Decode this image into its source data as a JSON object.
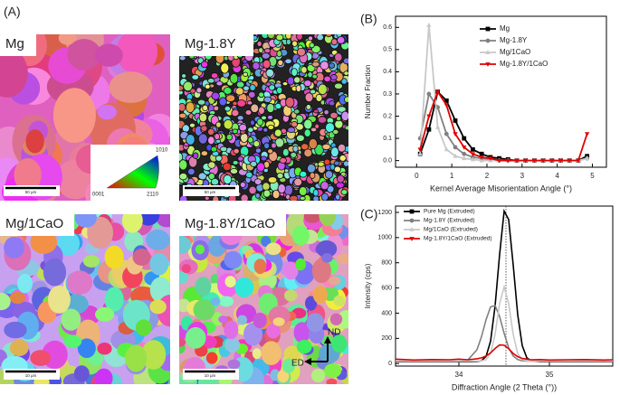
{
  "panel_a": {
    "label": "(A)",
    "images": [
      {
        "name": "Mg",
        "scale_bar": "50 μm"
      },
      {
        "name": "Mg-1.8Y",
        "scale_bar": "50 μm"
      },
      {
        "name": "Mg/1CaO",
        "scale_bar": "10 μm"
      },
      {
        "name": "Mg-1.8Y/1CaO",
        "scale_bar": "10 μm"
      }
    ],
    "ipf_key": {
      "top": "1010",
      "left": "0001",
      "right": "2110"
    },
    "axes_key": {
      "up": "ND",
      "left": "ED"
    }
  },
  "chart_data": [
    {
      "type": "line",
      "panel_label": "(B)",
      "x_label": "Kernel Average Misorientation Angle (°)",
      "y_label": "Number Fraction",
      "xlim": [
        -0.6,
        5.4
      ],
      "ylim": [
        -0.03,
        0.65
      ],
      "xticks": [
        0,
        1,
        2,
        3,
        4,
        5
      ],
      "yticks": [
        {
          "value": 0,
          "label": "0.0"
        },
        0.1,
        0.2,
        0.3,
        0.4,
        0.5,
        0.6
      ],
      "legend": "upper right",
      "x": [
        0.1,
        0.35,
        0.6,
        0.85,
        1.1,
        1.35,
        1.6,
        1.85,
        2.1,
        2.35,
        2.6,
        2.85,
        3.1,
        3.35,
        3.6,
        3.85,
        4.1,
        4.35,
        4.6,
        4.85
      ],
      "series": [
        {
          "name": "Mg",
          "color": "#000000",
          "marker": "square",
          "values": [
            0.03,
            0.14,
            0.31,
            0.27,
            0.18,
            0.1,
            0.05,
            0.03,
            0.015,
            0.01,
            0.005,
            0,
            0,
            0,
            0,
            0,
            0,
            0,
            0,
            0.02
          ]
        },
        {
          "name": "Mg-1.8Y",
          "color": "#808080",
          "marker": "circle",
          "values": [
            0.1,
            0.3,
            0.24,
            0.12,
            0.06,
            0.03,
            0.015,
            0.01,
            0.005,
            0,
            0,
            0,
            0,
            0,
            0,
            0,
            0,
            0,
            0,
            0.01
          ]
        },
        {
          "name": "Mg/1CaO",
          "color": "#c8c8c8",
          "marker": "triangle-up",
          "values": [
            0.03,
            0.61,
            0.15,
            0.05,
            0.02,
            0.01,
            0.005,
            0,
            0,
            0,
            0,
            0,
            0,
            0,
            0,
            0,
            0,
            0,
            0,
            0.01
          ]
        },
        {
          "name": "Mg-1.8Y/1CaO",
          "color": "#e00000",
          "marker": "triangle-down",
          "values": [
            0.05,
            0.2,
            0.31,
            0.25,
            0.12,
            0.06,
            0.03,
            0.015,
            0.01,
            0,
            0,
            0,
            0,
            0,
            0,
            0,
            0,
            0,
            0,
            0.12
          ]
        }
      ]
    },
    {
      "type": "line",
      "panel_label": "(C)",
      "x_label": "Diffraction Angle (2 Theta (°))",
      "y_label": "Intensity (cps)",
      "xlim": [
        33.3,
        35.7
      ],
      "ylim": [
        -20,
        1250
      ],
      "xticks": [
        34,
        35
      ],
      "yticks": [
        0,
        200,
        400,
        600,
        800,
        1000,
        1200
      ],
      "legend": "upper left",
      "reference_x": 34.52,
      "x": [
        33.3,
        33.5,
        33.7,
        33.9,
        34.0,
        34.1,
        34.2,
        34.25,
        34.3,
        34.35,
        34.4,
        34.45,
        34.5,
        34.55,
        34.6,
        34.65,
        34.7,
        34.75,
        34.8,
        34.9,
        35.0,
        35.2,
        35.4,
        35.6,
        35.7
      ],
      "series": [
        {
          "name": "Pure Mg (Extruded)",
          "color": "#000000",
          "marker": "square",
          "values": [
            15,
            15,
            15,
            15,
            15,
            15,
            16,
            23,
            57,
            177,
            458,
            867,
            1210,
            1143,
            783,
            387,
            142,
            46,
            20,
            15,
            15,
            15,
            15,
            15,
            15
          ]
        },
        {
          "name": "Mg-1.8Y (Extruded)",
          "color": "#808080",
          "marker": "circle",
          "values": [
            20,
            20,
            20,
            20,
            20,
            29,
            110,
            214,
            348,
            450,
            461,
            373,
            240,
            126,
            60,
            32,
            22,
            20,
            20,
            20,
            20,
            20,
            20,
            20,
            20
          ]
        },
        {
          "name": "Mg/1CaO (Extruded)",
          "color": "#c8c8c8",
          "marker": "triangle-up",
          "values": [
            20,
            20,
            20,
            20,
            20,
            20,
            20,
            22,
            30,
            79,
            232,
            476,
            610,
            476,
            232,
            79,
            30,
            22,
            20,
            20,
            20,
            20,
            20,
            20,
            20
          ]
        },
        {
          "name": "Mg-1.8Y/1CaO (Extruded)",
          "color": "#e00000",
          "marker": "triangle-down",
          "values": [
            35,
            28,
            32,
            30,
            35,
            30,
            38,
            45,
            60,
            85,
            120,
            148,
            145,
            118,
            80,
            55,
            40,
            35,
            30,
            32,
            28,
            30,
            32,
            28,
            30
          ]
        }
      ]
    }
  ]
}
